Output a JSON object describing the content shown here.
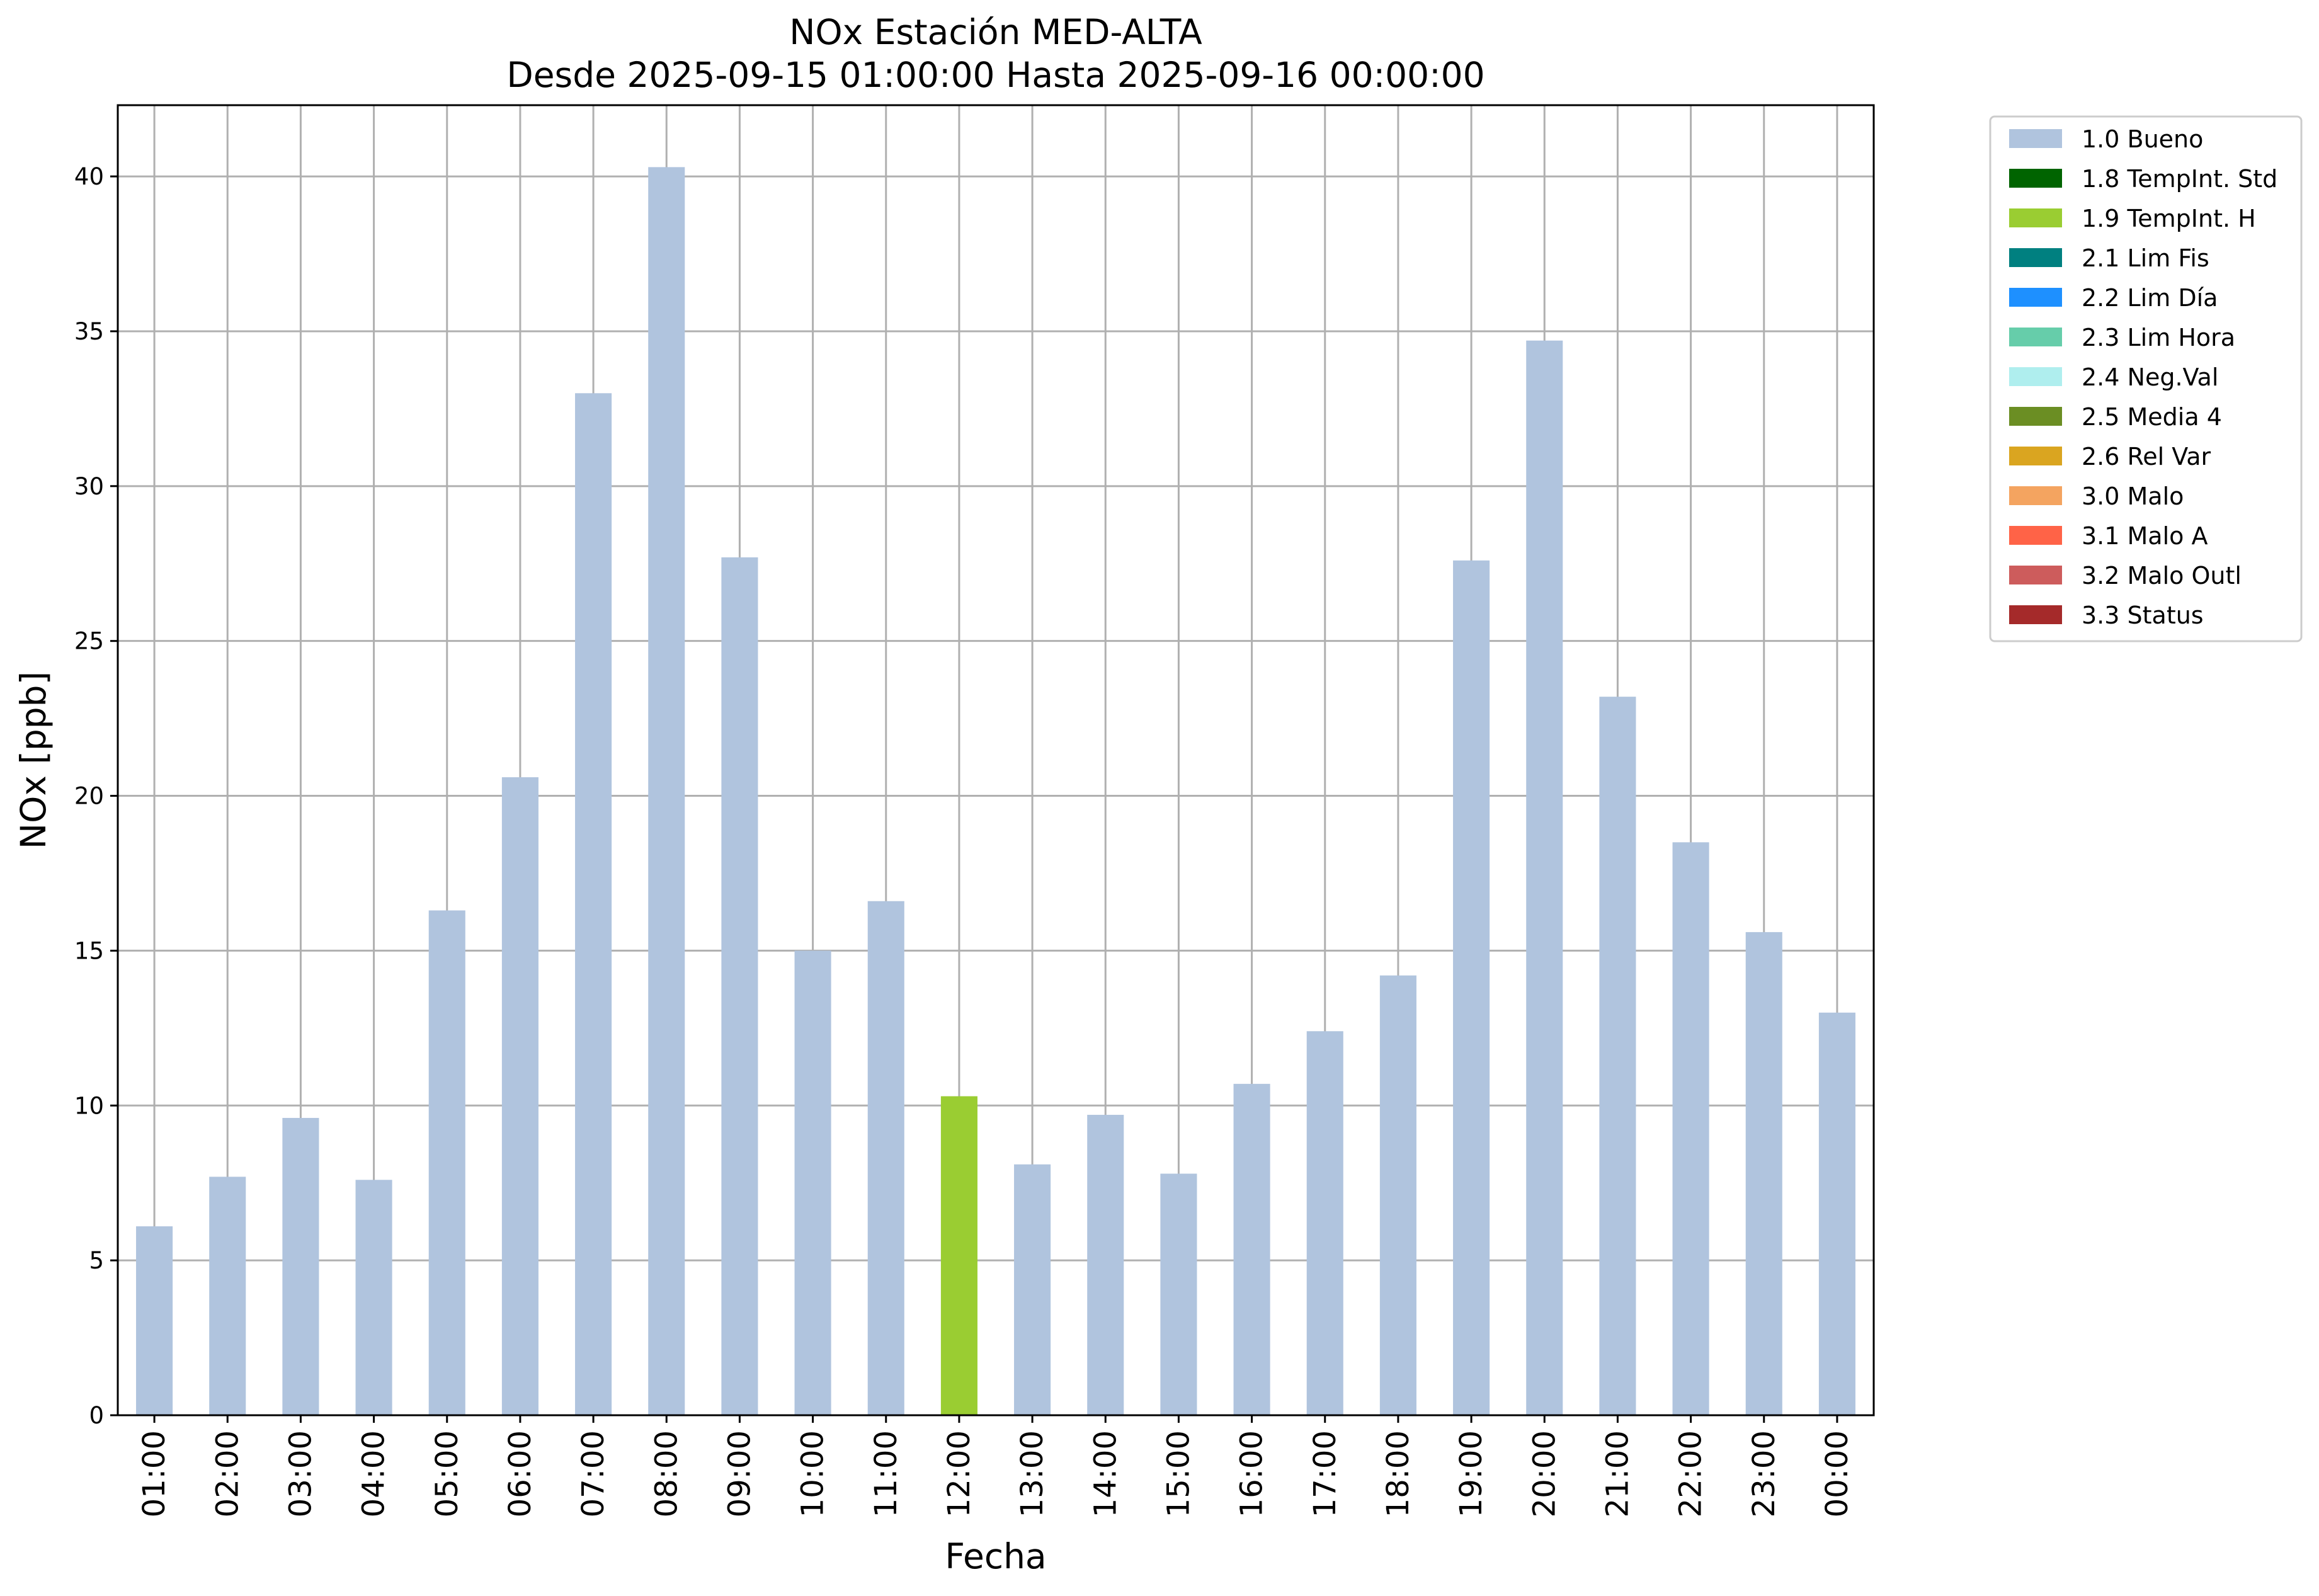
{
  "chart_data": {
    "type": "bar",
    "title": "NOx Estación MED-ALTA",
    "subtitle": "Desde 2025-09-15 01:00:00 Hasta 2025-09-16 00:00:00",
    "xlabel": "Fecha",
    "ylabel": "NOx [ppb]",
    "ylim": [
      0,
      42.3
    ],
    "yticks": [
      0,
      5,
      10,
      15,
      20,
      25,
      30,
      35,
      40
    ],
    "grid": true,
    "legend_position": "outside upper right",
    "categories": [
      "01:00",
      "02:00",
      "03:00",
      "04:00",
      "05:00",
      "06:00",
      "07:00",
      "08:00",
      "09:00",
      "10:00",
      "11:00",
      "12:00",
      "13:00",
      "14:00",
      "15:00",
      "16:00",
      "17:00",
      "18:00",
      "19:00",
      "20:00",
      "21:00",
      "22:00",
      "23:00",
      "00:00"
    ],
    "values": [
      6.1,
      7.7,
      9.6,
      7.6,
      16.3,
      20.6,
      33.0,
      40.3,
      27.7,
      15.0,
      16.6,
      10.3,
      8.1,
      9.7,
      7.8,
      10.7,
      12.4,
      14.2,
      27.6,
      34.7,
      23.2,
      18.5,
      15.6,
      13.0
    ],
    "flags": [
      "1.0 Bueno",
      "1.0 Bueno",
      "1.0 Bueno",
      "1.0 Bueno",
      "1.0 Bueno",
      "1.0 Bueno",
      "1.0 Bueno",
      "1.0 Bueno",
      "1.0 Bueno",
      "1.0 Bueno",
      "1.0 Bueno",
      "1.9 TempInt. H",
      "1.0 Bueno",
      "1.0 Bueno",
      "1.0 Bueno",
      "1.0 Bueno",
      "1.0 Bueno",
      "1.0 Bueno",
      "1.0 Bueno",
      "1.0 Bueno",
      "1.0 Bueno",
      "1.0 Bueno",
      "1.0 Bueno",
      "1.0 Bueno"
    ],
    "legend": [
      {
        "label": "1.0 Bueno",
        "color": "#b0c4de"
      },
      {
        "label": "1.8 TempInt. Std",
        "color": "#006400"
      },
      {
        "label": "1.9 TempInt. H",
        "color": "#9acd32"
      },
      {
        "label": "2.1 Lim Fis",
        "color": "#008080"
      },
      {
        "label": "2.2 Lim Día",
        "color": "#1e90ff"
      },
      {
        "label": "2.3 Lim Hora",
        "color": "#66cdaa"
      },
      {
        "label": "2.4 Neg.Val",
        "color": "#afeeee"
      },
      {
        "label": "2.5 Media 4",
        "color": "#6b8e23"
      },
      {
        "label": "2.6 Rel Var",
        "color": "#daa520"
      },
      {
        "label": "3.0 Malo",
        "color": "#f4a460"
      },
      {
        "label": "3.1 Malo A",
        "color": "#ff6347"
      },
      {
        "label": "3.2 Malo Outl",
        "color": "#cd5c5c"
      },
      {
        "label": "3.3 Status",
        "color": "#a52a2a"
      }
    ]
  }
}
